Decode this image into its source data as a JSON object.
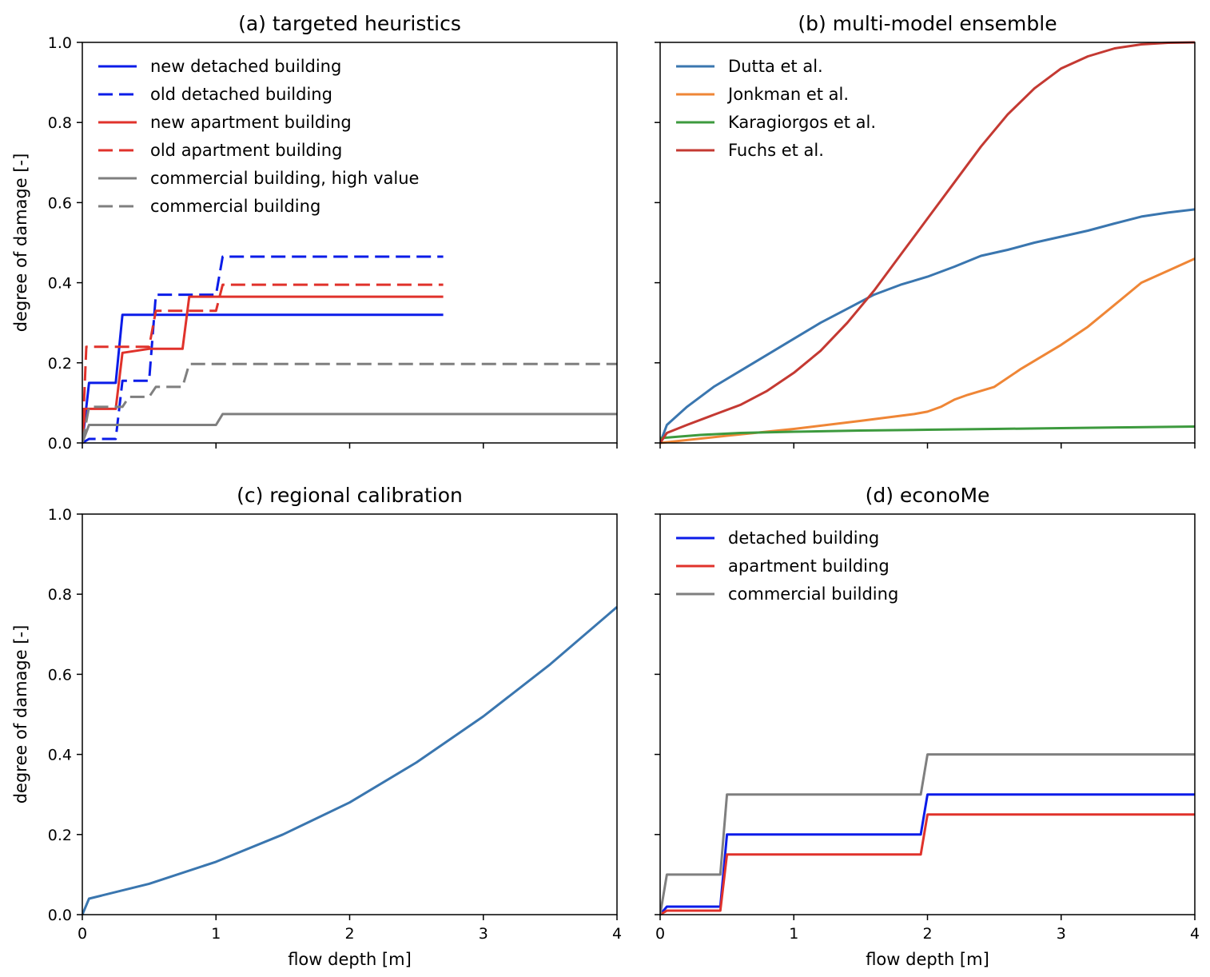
{
  "chart_data": [
    {
      "type": "line",
      "panel": "a",
      "title": "(a) targeted heuristics",
      "xlabel": "",
      "ylabel": "degree of damage [-]",
      "xlim": [
        0,
        4
      ],
      "ylim": [
        0,
        1.0
      ],
      "xticks": [
        0,
        1,
        2,
        3,
        4
      ],
      "xtick_labels": [
        "",
        "",
        "",
        "",
        ""
      ],
      "yticks": [
        "0.0",
        "0.2",
        "0.4",
        "0.6",
        "0.8",
        "1.0"
      ],
      "grid": false,
      "legend": "upper-left",
      "series": [
        {
          "name": "new detached building",
          "color": "#0b1ce8",
          "dash": "solid",
          "x": [
            0,
            0.05,
            0.25,
            0.3,
            2.7
          ],
          "y": [
            0,
            0.15,
            0.15,
            0.32,
            0.32
          ]
        },
        {
          "name": "old detached building",
          "color": "#0b1ce8",
          "dash": "dashed",
          "x": [
            0,
            0.05,
            0.25,
            0.3,
            0.5,
            0.55,
            1.0,
            1.05,
            2.7
          ],
          "y": [
            0,
            0.01,
            0.01,
            0.155,
            0.155,
            0.37,
            0.37,
            0.465,
            0.465
          ]
        },
        {
          "name": "new apartment building",
          "color": "#e0322b",
          "dash": "solid",
          "x": [
            0,
            0.02,
            0.25,
            0.3,
            0.5,
            0.55,
            0.75,
            0.8,
            2.7
          ],
          "y": [
            0,
            0.085,
            0.085,
            0.225,
            0.235,
            0.235,
            0.235,
            0.365,
            0.365
          ]
        },
        {
          "name": "old apartment building",
          "color": "#e0322b",
          "dash": "dashed",
          "x": [
            0,
            0.03,
            0.25,
            0.3,
            0.5,
            0.55,
            1.0,
            1.05,
            2.7
          ],
          "y": [
            0,
            0.24,
            0.24,
            0.24,
            0.24,
            0.33,
            0.33,
            0.395,
            0.395
          ]
        },
        {
          "name": "commercial building, high value",
          "color": "#7f7f7f",
          "dash": "solid",
          "x": [
            0,
            0.05,
            1.0,
            1.05,
            4.0
          ],
          "y": [
            0,
            0.045,
            0.045,
            0.072,
            0.072
          ]
        },
        {
          "name": "commercial building",
          "color": "#7f7f7f",
          "dash": "dashed",
          "x": [
            0,
            0.05,
            0.3,
            0.35,
            0.5,
            0.55,
            0.75,
            0.8,
            4.0
          ],
          "y": [
            0,
            0.09,
            0.09,
            0.115,
            0.115,
            0.14,
            0.14,
            0.197,
            0.197
          ]
        }
      ]
    },
    {
      "type": "line",
      "panel": "b",
      "title": "(b) multi-model ensemble",
      "xlabel": "",
      "ylabel": "",
      "xlim": [
        0,
        4
      ],
      "ylim": [
        0,
        1.0
      ],
      "xticks": [
        0,
        1,
        2,
        3,
        4
      ],
      "xtick_labels": [
        "",
        "",
        "",
        "",
        ""
      ],
      "yticks": [
        "",
        "",
        "",
        "",
        "",
        ""
      ],
      "grid": false,
      "legend": "upper-left",
      "series": [
        {
          "name": "Dutta et al.",
          "color": "#3a76af",
          "dash": "solid",
          "x": [
            0,
            0.05,
            0.2,
            0.4,
            0.6,
            0.8,
            1.0,
            1.2,
            1.4,
            1.6,
            1.8,
            2.0,
            2.2,
            2.4,
            2.6,
            2.8,
            3.0,
            3.2,
            3.4,
            3.6,
            3.8,
            4.0
          ],
          "y": [
            0,
            0.045,
            0.09,
            0.14,
            0.18,
            0.22,
            0.26,
            0.3,
            0.335,
            0.37,
            0.395,
            0.415,
            0.44,
            0.467,
            0.482,
            0.5,
            0.515,
            0.53,
            0.548,
            0.565,
            0.575,
            0.583
          ]
        },
        {
          "name": "Jonkman et al.",
          "color": "#ef8636",
          "dash": "solid",
          "x": [
            0,
            0.5,
            1.0,
            1.5,
            1.9,
            2.0,
            2.1,
            2.2,
            2.3,
            2.5,
            2.7,
            3.0,
            3.2,
            3.4,
            3.6,
            3.8,
            4.0
          ],
          "y": [
            0,
            0.018,
            0.035,
            0.055,
            0.072,
            0.078,
            0.09,
            0.108,
            0.12,
            0.14,
            0.185,
            0.245,
            0.29,
            0.345,
            0.4,
            0.43,
            0.46
          ]
        },
        {
          "name": "Karagiorgos et al.",
          "color": "#3d9a3e",
          "dash": "solid",
          "x": [
            0,
            0.3,
            0.6,
            1.0,
            1.5,
            2.0,
            2.5,
            3.0,
            3.5,
            4.0
          ],
          "y": [
            0.012,
            0.02,
            0.025,
            0.028,
            0.031,
            0.033,
            0.035,
            0.037,
            0.039,
            0.041
          ]
        },
        {
          "name": "Fuchs et al.",
          "color": "#c43932",
          "dash": "solid",
          "x": [
            0,
            0.05,
            0.2,
            0.4,
            0.6,
            0.8,
            1.0,
            1.2,
            1.4,
            1.6,
            1.8,
            2.0,
            2.2,
            2.4,
            2.6,
            2.8,
            3.0,
            3.2,
            3.4,
            3.6,
            3.8,
            4.0
          ],
          "y": [
            0,
            0.025,
            0.045,
            0.07,
            0.095,
            0.13,
            0.175,
            0.23,
            0.3,
            0.38,
            0.47,
            0.56,
            0.65,
            0.74,
            0.82,
            0.885,
            0.935,
            0.965,
            0.985,
            0.995,
            0.999,
            1.0
          ]
        }
      ]
    },
    {
      "type": "line",
      "panel": "c",
      "title": "(c) regional calibration",
      "xlabel": "flow depth [m]",
      "ylabel": "degree of damage [-]",
      "xlim": [
        0,
        4
      ],
      "ylim": [
        0,
        1.0
      ],
      "xticks": [
        0,
        1,
        2,
        3,
        4
      ],
      "xtick_labels": [
        "0",
        "1",
        "2",
        "3",
        "4"
      ],
      "yticks": [
        "0.0",
        "0.2",
        "0.4",
        "0.6",
        "0.8",
        "1.0"
      ],
      "grid": false,
      "legend": "none",
      "series": [
        {
          "name": "",
          "color": "#3a76af",
          "dash": "solid",
          "x": [
            0,
            0.05,
            0.5,
            1.0,
            1.5,
            2.0,
            2.5,
            3.0,
            3.5,
            4.0
          ],
          "y": [
            0,
            0.04,
            0.077,
            0.132,
            0.2,
            0.28,
            0.38,
            0.495,
            0.625,
            0.768
          ]
        }
      ]
    },
    {
      "type": "line",
      "panel": "d",
      "title": "(d) econoMe",
      "xlabel": "flow depth [m]",
      "ylabel": "",
      "xlim": [
        0,
        4
      ],
      "ylim": [
        0,
        1.0
      ],
      "xticks": [
        0,
        1,
        2,
        3,
        4
      ],
      "xtick_labels": [
        "0",
        "1",
        "2",
        "3",
        "4"
      ],
      "yticks": [
        "",
        "",
        "",
        "",
        "",
        ""
      ],
      "grid": false,
      "legend": "upper-left",
      "series": [
        {
          "name": "detached building",
          "color": "#0b1ce8",
          "dash": "solid",
          "x": [
            0,
            0.05,
            0.45,
            0.5,
            1.95,
            2.0,
            4.0
          ],
          "y": [
            0,
            0.02,
            0.02,
            0.2,
            0.2,
            0.3,
            0.3
          ]
        },
        {
          "name": "apartment building",
          "color": "#e0322b",
          "dash": "solid",
          "x": [
            0,
            0.05,
            0.45,
            0.5,
            1.95,
            2.0,
            4.0
          ],
          "y": [
            0,
            0.01,
            0.01,
            0.15,
            0.15,
            0.25,
            0.25
          ]
        },
        {
          "name": "commercial building",
          "color": "#7f7f7f",
          "dash": "solid",
          "x": [
            0,
            0.05,
            0.45,
            0.5,
            1.95,
            2.0,
            4.0
          ],
          "y": [
            0,
            0.1,
            0.1,
            0.3,
            0.3,
            0.4,
            0.4
          ]
        }
      ]
    }
  ]
}
